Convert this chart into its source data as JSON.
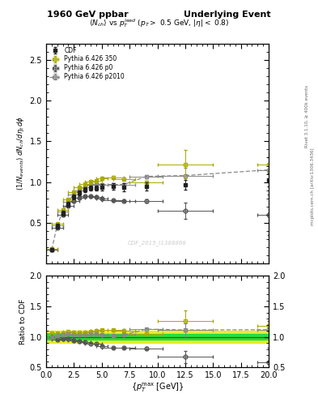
{
  "title_left": "1960 GeV ppbar",
  "title_right": "Underlying Event",
  "subtitle": "$\\langle N_{ch}\\rangle$ vs $p_T^{lead}$ ($p_T >$ 0.5 GeV, $|\\eta| <$ 0.8)",
  "ylabel_main": "$(1/N_{events})\\; dN_{ch}/d\\eta_t\\, d\\phi$",
  "ylabel_ratio": "Ratio to CDF",
  "xlabel": "$\\{p_T^{max}\\;[\\mathrm{GeV}]\\}$",
  "watermark": "CDF_2015_I1388868",
  "right_label_top": "Rivet 3.1.10, ≥ 400k events",
  "right_label_bot": "mcplots.cern.ch [arXiv:1306.3436]",
  "cdf_x": [
    0.5,
    1.0,
    1.5,
    2.0,
    2.5,
    3.0,
    3.5,
    4.0,
    4.5,
    5.0,
    6.0,
    7.0,
    9.0,
    12.5,
    20.0
  ],
  "cdf_y": [
    0.17,
    0.46,
    0.62,
    0.73,
    0.82,
    0.87,
    0.91,
    0.93,
    0.93,
    0.94,
    0.95,
    0.94,
    0.95,
    0.97,
    1.03
  ],
  "cdf_ye": [
    0.02,
    0.03,
    0.03,
    0.03,
    0.03,
    0.03,
    0.03,
    0.03,
    0.03,
    0.04,
    0.04,
    0.05,
    0.05,
    0.06,
    0.08
  ],
  "cdf_xe": [
    0.0,
    0.0,
    0.0,
    0.0,
    0.0,
    0.0,
    0.0,
    0.0,
    0.0,
    0.0,
    0.0,
    0.0,
    0.0,
    0.0,
    0.0
  ],
  "py350_x": [
    0.5,
    1.0,
    1.5,
    2.0,
    2.5,
    3.0,
    3.5,
    4.0,
    4.5,
    5.0,
    6.0,
    7.0,
    9.0,
    12.5,
    20.0
  ],
  "py350_y": [
    0.18,
    0.49,
    0.66,
    0.79,
    0.88,
    0.94,
    0.98,
    1.01,
    1.02,
    1.05,
    1.06,
    1.04,
    1.0,
    1.22,
    1.22
  ],
  "py350_ye": [
    0.005,
    0.007,
    0.007,
    0.008,
    0.008,
    0.009,
    0.009,
    0.009,
    0.01,
    0.01,
    0.012,
    0.015,
    0.02,
    0.17,
    0.08
  ],
  "py350_xe": [
    0.5,
    0.5,
    0.5,
    0.5,
    0.5,
    0.5,
    0.5,
    0.5,
    0.5,
    0.5,
    1.0,
    1.0,
    1.5,
    2.5,
    1.0
  ],
  "pyp0_x": [
    0.5,
    1.0,
    1.5,
    2.0,
    2.5,
    3.0,
    3.5,
    4.0,
    4.5,
    5.0,
    6.0,
    7.0,
    9.0,
    12.5,
    20.0
  ],
  "pyp0_y": [
    0.17,
    0.44,
    0.6,
    0.71,
    0.77,
    0.81,
    0.83,
    0.83,
    0.82,
    0.8,
    0.78,
    0.77,
    0.77,
    0.65,
    0.6
  ],
  "pyp0_ye": [
    0.005,
    0.007,
    0.007,
    0.008,
    0.008,
    0.008,
    0.008,
    0.008,
    0.009,
    0.009,
    0.01,
    0.012,
    0.018,
    0.1,
    0.25
  ],
  "pyp0_xe": [
    0.5,
    0.5,
    0.5,
    0.5,
    0.5,
    0.5,
    0.5,
    0.5,
    0.5,
    0.5,
    1.0,
    1.0,
    1.5,
    2.5,
    1.0
  ],
  "pyp2010_x": [
    0.5,
    1.0,
    1.5,
    2.0,
    2.5,
    3.0,
    3.5,
    4.0,
    4.5,
    5.0,
    6.0,
    7.0,
    9.0,
    12.5,
    20.0
  ],
  "pyp2010_y": [
    0.17,
    0.47,
    0.64,
    0.76,
    0.85,
    0.9,
    0.94,
    0.97,
    0.98,
    0.97,
    0.97,
    0.97,
    1.07,
    1.08,
    1.15
  ],
  "pyp2010_ye": [
    0.005,
    0.007,
    0.007,
    0.008,
    0.008,
    0.009,
    0.009,
    0.009,
    0.01,
    0.01,
    0.012,
    0.015,
    0.02,
    0.1,
    0.15
  ],
  "pyp2010_xe": [
    0.5,
    0.5,
    0.5,
    0.5,
    0.5,
    0.5,
    0.5,
    0.5,
    0.5,
    0.5,
    1.0,
    1.0,
    1.5,
    2.5,
    1.0
  ],
  "color_cdf": "#222222",
  "color_py350": "#aaaa00",
  "color_pyp0": "#555555",
  "color_pyp2010": "#888888",
  "band_green": 0.05,
  "band_yellow": 0.1,
  "xlim": [
    0,
    20
  ],
  "ylim_main": [
    0.0,
    2.7
  ],
  "ylim_ratio": [
    0.5,
    2.0
  ],
  "yticks_main": [
    0.5,
    1.0,
    1.5,
    2.0,
    2.5
  ],
  "yticks_ratio": [
    0.5,
    1.0,
    1.5,
    2.0
  ]
}
